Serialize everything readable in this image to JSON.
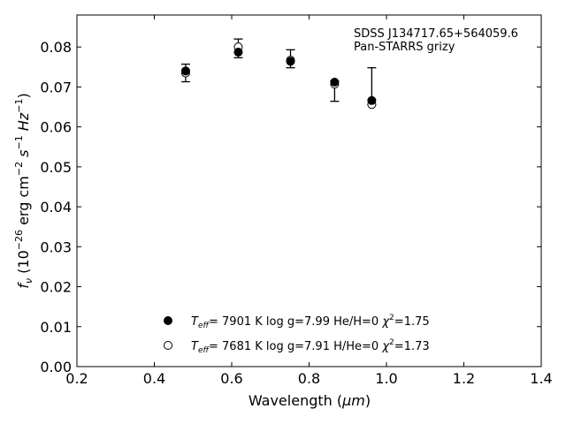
{
  "chart_data": {
    "type": "scatter",
    "title": "",
    "annotation_lines": [
      "SDSS J134717.65+564059.6",
      "Pan-STARRS grizy"
    ],
    "xlabel": {
      "prefix": "Wavelength (",
      "unit": "μm",
      "suffix": ")"
    },
    "ylabel": {
      "prefix": "f",
      "sub": "ν",
      "unit_text": " (10",
      "exp": "−26",
      "rest": " erg cm",
      "exp2": "−2",
      "s": " s",
      "exp3": "−1",
      "hz": " Hz",
      "exp4": "−1",
      "close": ")"
    },
    "xlim": [
      0.2,
      1.4
    ],
    "ylim": [
      0.0,
      0.088
    ],
    "x_ticks": [
      "0.2",
      "0.4",
      "0.6",
      "0.8",
      "1.0",
      "1.2",
      "1.4"
    ],
    "y_ticks": [
      "0.00",
      "0.01",
      "0.02",
      "0.03",
      "0.04",
      "0.05",
      "0.06",
      "0.07",
      "0.08"
    ],
    "grid": false,
    "legend_position": "lower-center",
    "observed": {
      "x": [
        0.481,
        0.617,
        0.752,
        0.866,
        0.962
      ],
      "y": [
        0.0735,
        0.0785,
        0.077,
        0.0705,
        0.0655
      ],
      "yerr_low": [
        0.0022,
        0.0012,
        0.0022,
        0.0041,
        0.0
      ],
      "yerr_high": [
        0.0022,
        0.0035,
        0.0023,
        0.001,
        0.0093
      ]
    },
    "series": [
      {
        "name": "T_eff = 7901 K  log g=7.99  He/H=0  χ²=1.75",
        "marker": "filled",
        "x": [
          0.481,
          0.617,
          0.752,
          0.866,
          0.962
        ],
        "y": [
          0.074,
          0.0787,
          0.0764,
          0.0712,
          0.0666
        ]
      },
      {
        "name": "T_eff = 7681 K  log g=7.91  H/He=0  χ²=1.73",
        "marker": "open",
        "x": [
          0.481,
          0.617,
          0.752,
          0.866,
          0.962
        ],
        "y": [
          0.0735,
          0.08,
          0.0767,
          0.0707,
          0.0656
        ]
      }
    ],
    "legend": [
      {
        "teff": "7901",
        "logg": "7.99",
        "comp_label": "He/H=0",
        "chi": "1.75"
      },
      {
        "teff": "7681",
        "logg": "7.91",
        "comp_label": "H/He=0",
        "chi": "1.73"
      }
    ],
    "legend_text": {
      "teff_sym": "T",
      "teff_sub": "eff",
      "eq": "=  ",
      "k": " K  log g=",
      "chi_sym": "χ",
      "chi_exp": "2",
      "chi_eq": "="
    },
    "colors": {
      "marker": "#000000",
      "axes": "#000000",
      "background": "#ffffff"
    }
  }
}
